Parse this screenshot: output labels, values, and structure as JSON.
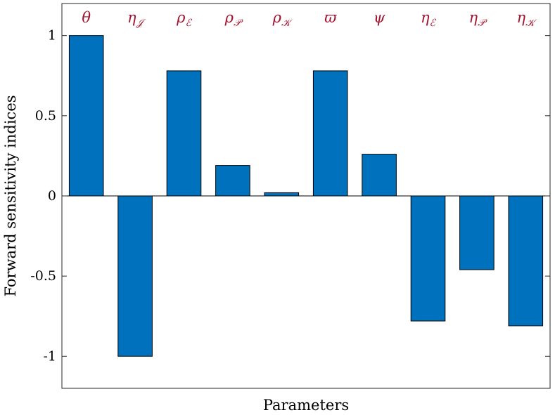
{
  "chart_data": {
    "type": "bar",
    "categories": [
      "θ",
      "η𝒥",
      "ρℰ",
      "ρ𝒫",
      "ρ𝒦",
      "ϖ",
      "ψ",
      "ηℰ",
      "η𝒫",
      "η𝒦"
    ],
    "category_labels": [
      {
        "base": "θ",
        "sub": ""
      },
      {
        "base": "η",
        "sub": "𝒥"
      },
      {
        "base": "ρ",
        "sub": "ℰ"
      },
      {
        "base": "ρ",
        "sub": "𝒫"
      },
      {
        "base": "ρ",
        "sub": "𝒦"
      },
      {
        "base": "ϖ",
        "sub": ""
      },
      {
        "base": "ψ",
        "sub": ""
      },
      {
        "base": "η",
        "sub": "ℰ"
      },
      {
        "base": "η",
        "sub": "𝒫"
      },
      {
        "base": "η",
        "sub": "𝒦"
      }
    ],
    "values": [
      1.0,
      -1.0,
      0.78,
      0.19,
      0.02,
      0.78,
      0.26,
      -0.78,
      -0.46,
      -0.81
    ],
    "xlabel": "Parameters",
    "ylabel": "Forward sensitivity indices",
    "ylim": [
      -1.2,
      1.2
    ],
    "yticks": [
      -1,
      -0.5,
      0,
      0.5,
      1
    ],
    "ytick_labels": [
      "-1",
      "-0.5",
      "0",
      "0.5",
      "1"
    ],
    "grid": false,
    "bar_color": "#0072BD",
    "label_color": "#A2142F",
    "label_placement": "above bars, inside top of axes"
  }
}
